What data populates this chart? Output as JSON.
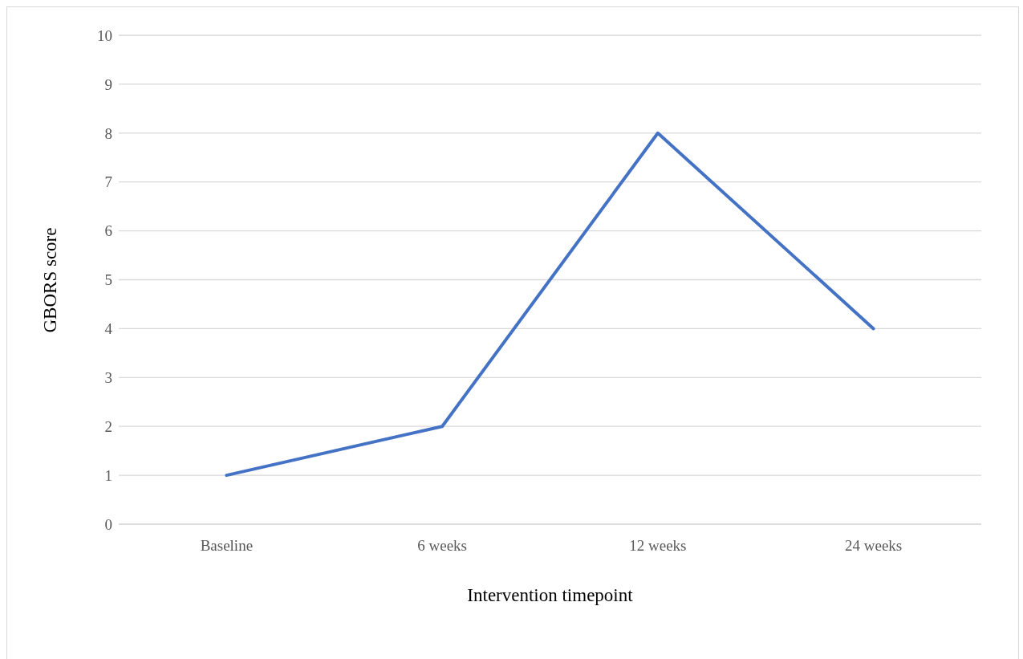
{
  "chart_data": {
    "type": "line",
    "xlabel": "Intervention timepoint",
    "ylabel": "GBORS score",
    "categories": [
      "Baseline",
      "6 weeks",
      "12 weeks",
      "24 weeks"
    ],
    "series": [
      {
        "color": "#4472c4",
        "values": [
          1,
          2,
          8,
          4
        ]
      }
    ],
    "ylim": [
      0,
      10
    ],
    "yticks": [
      0,
      1,
      2,
      3,
      4,
      5,
      6,
      7,
      8,
      9,
      10
    ],
    "grid": "y",
    "marker": "none",
    "line_style": "solid"
  }
}
